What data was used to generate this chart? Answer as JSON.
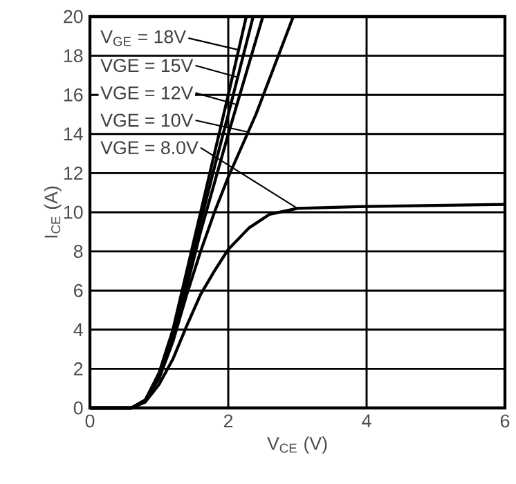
{
  "chart_data": {
    "type": "line",
    "xlabel": "V$_{CE}$ (V)",
    "ylabel": "I$_{CE}$ (A)",
    "xlim": [
      0,
      6
    ],
    "xticks": [
      0,
      2,
      4,
      6
    ],
    "ylim": [
      0,
      20
    ],
    "yticks": [
      0,
      2,
      4,
      6,
      8,
      10,
      12,
      14,
      16,
      18,
      20
    ],
    "grid": true,
    "legend": "top left",
    "marker": "none",
    "line_style": "solid",
    "series": [
      {
        "name": "V$_{GE}$ = 18V",
        "color": "#000000",
        "x": [
          0,
          0.6,
          0.8,
          1.0,
          1.2,
          1.4,
          1.6,
          1.8,
          2.0,
          2.26
        ],
        "values": [
          0,
          0,
          0.4,
          1.8,
          4,
          7,
          10,
          13,
          16,
          20
        ]
      },
      {
        "name": "VGE = 15V",
        "color": "#000000",
        "x": [
          0,
          0.6,
          0.8,
          1.0,
          1.2,
          1.4,
          1.6,
          1.8,
          2.0,
          2.36
        ],
        "values": [
          0,
          0,
          0.4,
          1.7,
          3.8,
          6.6,
          9.5,
          12.3,
          15,
          20
        ]
      },
      {
        "name": "VGE = 12V",
        "color": "#000000",
        "x": [
          0,
          0.6,
          0.8,
          1.0,
          1.2,
          1.4,
          1.6,
          1.8,
          2.0,
          2.5
        ],
        "values": [
          0,
          0,
          0.4,
          1.6,
          3.6,
          6.2,
          9,
          11.5,
          14,
          20
        ]
      },
      {
        "name": "VGE = 10V",
        "color": "#000000",
        "x": [
          0,
          0.6,
          0.8,
          1.0,
          1.2,
          1.4,
          1.6,
          1.8,
          2.0,
          2.4,
          2.94
        ],
        "values": [
          0,
          0,
          0.4,
          1.5,
          3.4,
          5.8,
          8,
          10,
          11.8,
          15,
          20
        ]
      },
      {
        "name": "VGE = 8.0V",
        "color": "#000000",
        "x": [
          0,
          0.6,
          0.8,
          1.0,
          1.2,
          1.4,
          1.6,
          1.8,
          2.0,
          2.3,
          2.6,
          3.0,
          4.0,
          5.0,
          6.0
        ],
        "values": [
          0,
          0,
          0.3,
          1.2,
          2.5,
          4.2,
          5.8,
          7,
          8.1,
          9.2,
          9.9,
          10.2,
          10.3,
          10.35,
          10.4
        ]
      }
    ]
  }
}
